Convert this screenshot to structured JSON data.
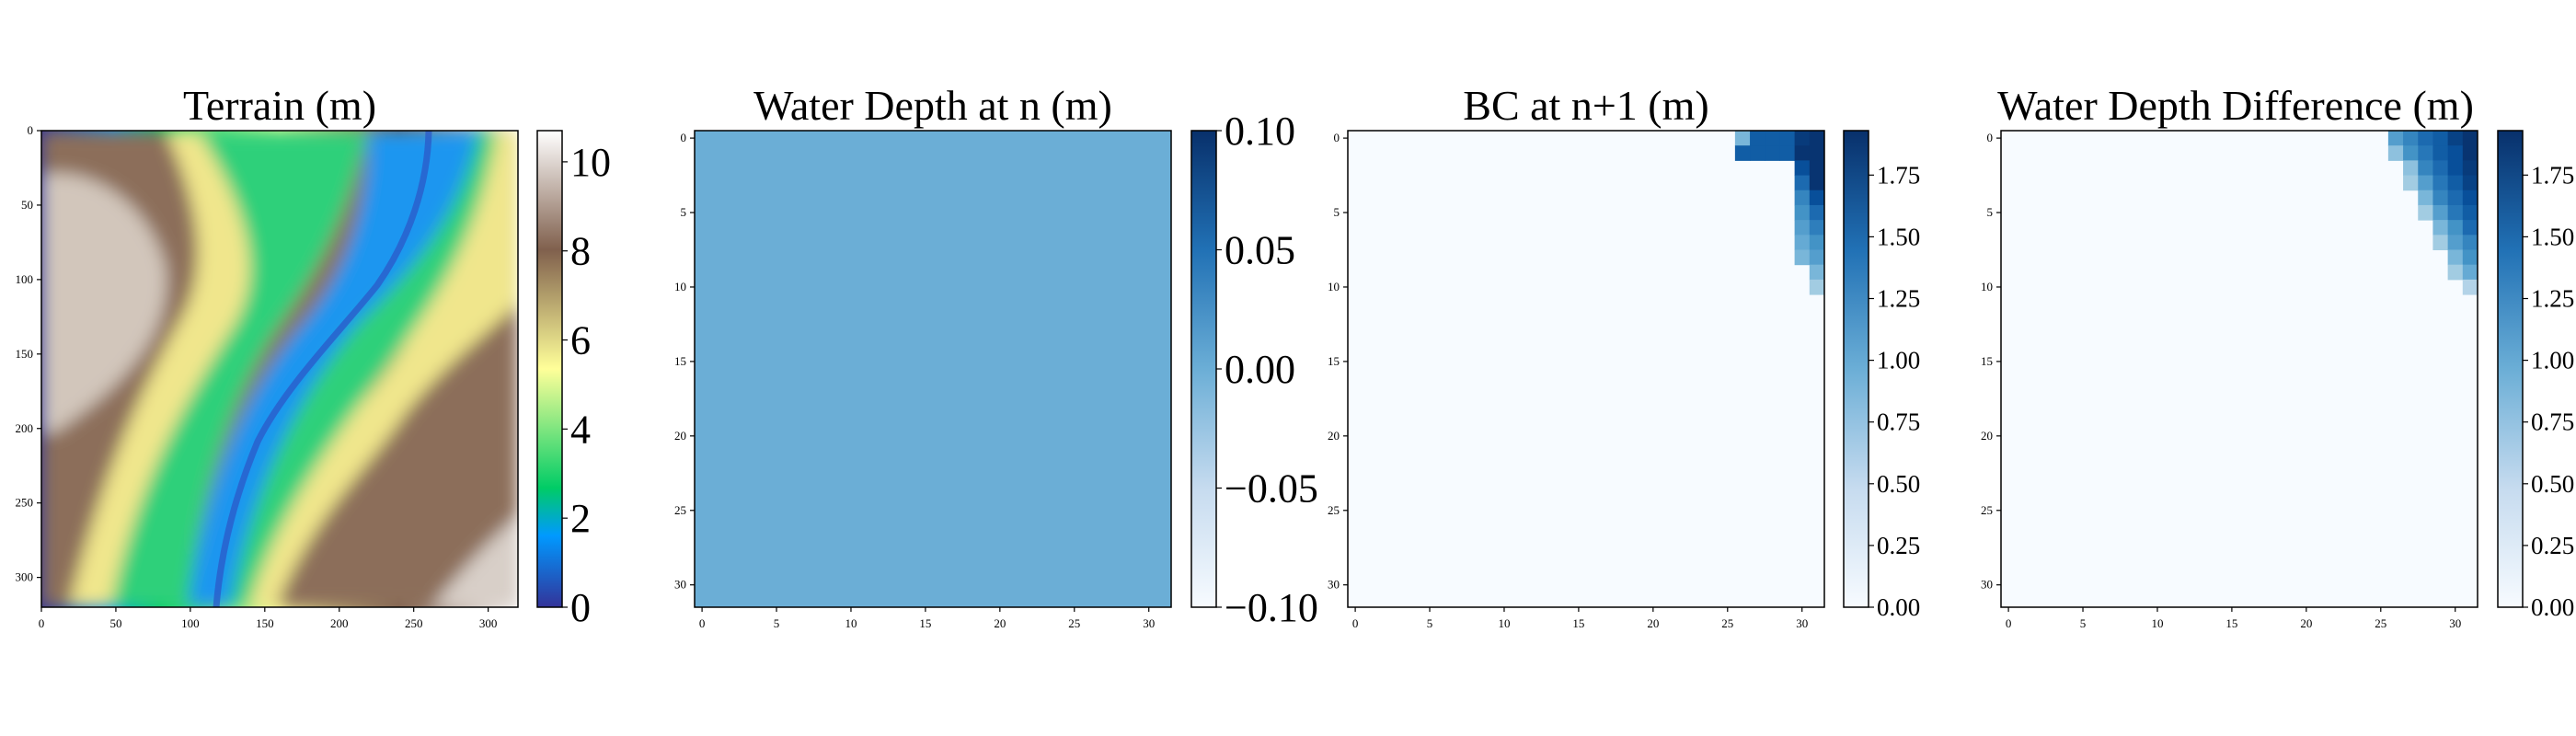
{
  "chart_data": [
    {
      "type": "heatmap",
      "title": "Terrain (m)",
      "colormap": "terrain",
      "xticks": [
        "0",
        "50",
        "100",
        "150",
        "200",
        "250",
        "300"
      ],
      "yticks": [
        "0",
        "50",
        "100",
        "150",
        "200",
        "250",
        "300"
      ],
      "xlim": [
        0,
        320
      ],
      "ylim": [
        320,
        0
      ],
      "colorbar": {
        "ticks": [
          "0",
          "2",
          "4",
          "6",
          "8",
          "10"
        ],
        "range": [
          0,
          10.7
        ]
      }
    },
    {
      "type": "heatmap",
      "title": "Water Depth at n (m)",
      "colormap": "Blues",
      "uniform_value": 0.0,
      "uniform_color": "#6baed6",
      "xticks": [
        "0",
        "5",
        "10",
        "15",
        "20",
        "25",
        "30"
      ],
      "yticks": [
        "0",
        "5",
        "10",
        "15",
        "20",
        "25",
        "30"
      ],
      "xlim": [
        0,
        32
      ],
      "ylim": [
        32,
        0
      ],
      "colorbar": {
        "ticks": [
          "0.10",
          "0.05",
          "0.00",
          "−0.05",
          "−0.10"
        ],
        "range": [
          -0.1,
          0.1
        ]
      }
    },
    {
      "type": "heatmap",
      "title": "BC at n+1 (m)",
      "colormap": "Blues",
      "grid_size": 32,
      "cells": [
        {
          "r": 0,
          "c": 26,
          "v": 0.9
        },
        {
          "r": 0,
          "c": 27,
          "v": 1.6
        },
        {
          "r": 0,
          "c": 28,
          "v": 1.6
        },
        {
          "r": 0,
          "c": 29,
          "v": 1.6
        },
        {
          "r": 0,
          "c": 30,
          "v": 1.85
        },
        {
          "r": 0,
          "c": 31,
          "v": 1.9
        },
        {
          "r": 1,
          "c": 26,
          "v": 1.6
        },
        {
          "r": 1,
          "c": 27,
          "v": 1.6
        },
        {
          "r": 1,
          "c": 28,
          "v": 1.6
        },
        {
          "r": 1,
          "c": 29,
          "v": 1.6
        },
        {
          "r": 1,
          "c": 30,
          "v": 1.9
        },
        {
          "r": 1,
          "c": 31,
          "v": 1.9
        },
        {
          "r": 2,
          "c": 30,
          "v": 1.7
        },
        {
          "r": 2,
          "c": 31,
          "v": 1.9
        },
        {
          "r": 3,
          "c": 30,
          "v": 1.5
        },
        {
          "r": 3,
          "c": 31,
          "v": 1.9
        },
        {
          "r": 4,
          "c": 30,
          "v": 1.3
        },
        {
          "r": 4,
          "c": 31,
          "v": 1.7
        },
        {
          "r": 5,
          "c": 30,
          "v": 1.2
        },
        {
          "r": 5,
          "c": 31,
          "v": 1.5
        },
        {
          "r": 6,
          "c": 30,
          "v": 1.1
        },
        {
          "r": 6,
          "c": 31,
          "v": 1.35
        },
        {
          "r": 7,
          "c": 30,
          "v": 1.0
        },
        {
          "r": 7,
          "c": 31,
          "v": 1.2
        },
        {
          "r": 8,
          "c": 30,
          "v": 0.9
        },
        {
          "r": 8,
          "c": 31,
          "v": 1.1
        },
        {
          "r": 9,
          "c": 31,
          "v": 0.9
        },
        {
          "r": 10,
          "c": 31,
          "v": 0.7
        }
      ],
      "xticks": [
        "0",
        "5",
        "10",
        "15",
        "20",
        "25",
        "30"
      ],
      "yticks": [
        "0",
        "5",
        "10",
        "15",
        "20",
        "25",
        "30"
      ],
      "xlim": [
        0,
        32
      ],
      "ylim": [
        32,
        0
      ],
      "colorbar": {
        "ticks": [
          "1.75",
          "1.50",
          "1.25",
          "1.00",
          "0.75",
          "0.50",
          "0.25",
          "0.00"
        ],
        "range": [
          0,
          1.93
        ]
      }
    },
    {
      "type": "heatmap",
      "title": "Water Depth Difference (m)",
      "colormap": "Blues",
      "grid_size": 32,
      "cells": [
        {
          "r": 0,
          "c": 26,
          "v": 1.1
        },
        {
          "r": 0,
          "c": 27,
          "v": 1.3
        },
        {
          "r": 0,
          "c": 28,
          "v": 1.5
        },
        {
          "r": 0,
          "c": 29,
          "v": 1.6
        },
        {
          "r": 0,
          "c": 30,
          "v": 1.8
        },
        {
          "r": 0,
          "c": 31,
          "v": 1.9
        },
        {
          "r": 1,
          "c": 26,
          "v": 0.8
        },
        {
          "r": 1,
          "c": 27,
          "v": 1.2
        },
        {
          "r": 1,
          "c": 28,
          "v": 1.4
        },
        {
          "r": 1,
          "c": 29,
          "v": 1.6
        },
        {
          "r": 1,
          "c": 30,
          "v": 1.7
        },
        {
          "r": 1,
          "c": 31,
          "v": 1.9
        },
        {
          "r": 2,
          "c": 27,
          "v": 0.8
        },
        {
          "r": 2,
          "c": 28,
          "v": 1.3
        },
        {
          "r": 2,
          "c": 29,
          "v": 1.5
        },
        {
          "r": 2,
          "c": 30,
          "v": 1.7
        },
        {
          "r": 2,
          "c": 31,
          "v": 1.85
        },
        {
          "r": 3,
          "c": 27,
          "v": 0.7
        },
        {
          "r": 3,
          "c": 28,
          "v": 1.1
        },
        {
          "r": 3,
          "c": 29,
          "v": 1.4
        },
        {
          "r": 3,
          "c": 30,
          "v": 1.6
        },
        {
          "r": 3,
          "c": 31,
          "v": 1.8
        },
        {
          "r": 4,
          "c": 28,
          "v": 0.9
        },
        {
          "r": 4,
          "c": 29,
          "v": 1.3
        },
        {
          "r": 4,
          "c": 30,
          "v": 1.5
        },
        {
          "r": 4,
          "c": 31,
          "v": 1.7
        },
        {
          "r": 5,
          "c": 28,
          "v": 0.7
        },
        {
          "r": 5,
          "c": 29,
          "v": 1.1
        },
        {
          "r": 5,
          "c": 30,
          "v": 1.4
        },
        {
          "r": 5,
          "c": 31,
          "v": 1.6
        },
        {
          "r": 6,
          "c": 29,
          "v": 0.9
        },
        {
          "r": 6,
          "c": 30,
          "v": 1.2
        },
        {
          "r": 6,
          "c": 31,
          "v": 1.5
        },
        {
          "r": 7,
          "c": 29,
          "v": 0.7
        },
        {
          "r": 7,
          "c": 30,
          "v": 1.1
        },
        {
          "r": 7,
          "c": 31,
          "v": 1.3
        },
        {
          "r": 8,
          "c": 30,
          "v": 0.9
        },
        {
          "r": 8,
          "c": 31,
          "v": 1.2
        },
        {
          "r": 9,
          "c": 30,
          "v": 0.7
        },
        {
          "r": 9,
          "c": 31,
          "v": 1.0
        },
        {
          "r": 10,
          "c": 31,
          "v": 0.6
        }
      ],
      "xticks": [
        "0",
        "5",
        "10",
        "15",
        "20",
        "25",
        "30"
      ],
      "yticks": [
        "0",
        "5",
        "10",
        "15",
        "20",
        "25",
        "30"
      ],
      "xlim": [
        0,
        32
      ],
      "ylim": [
        32,
        0
      ],
      "colorbar": {
        "ticks": [
          "1.75",
          "1.50",
          "1.25",
          "1.00",
          "0.75",
          "0.50",
          "0.25",
          "0.00"
        ],
        "range": [
          0,
          1.93
        ]
      }
    }
  ]
}
